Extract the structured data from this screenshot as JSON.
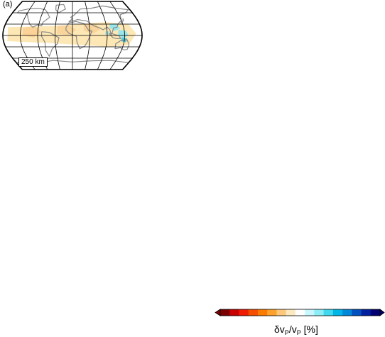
{
  "panel": {
    "label": "(a)",
    "depth_label": "250 km"
  },
  "colorbar": {
    "label_prefix": "δv",
    "label_sub1": "P",
    "label_mid": "/v",
    "label_sub2": "P",
    "label_suffix": " [%]",
    "colors": [
      "#7a0000",
      "#c80000",
      "#ee1c00",
      "#f54e00",
      "#fa7b00",
      "#fca12c",
      "#fdc77c",
      "#fde9c0",
      "#ffffff",
      "#c8f7ff",
      "#8cecf7",
      "#3fd8ec",
      "#00b6e6",
      "#0088d8",
      "#0050c0",
      "#0020a0",
      "#000070"
    ]
  },
  "map": {
    "projection": "sinusoidal-like global map",
    "coastline_color": "#888888",
    "grid_color": "#000000",
    "anomaly_colors": {
      "slow": "#fde3a8",
      "slower": "#f9c98a",
      "fast": "#8ee6f0",
      "faster": "#3dc9e0"
    }
  }
}
